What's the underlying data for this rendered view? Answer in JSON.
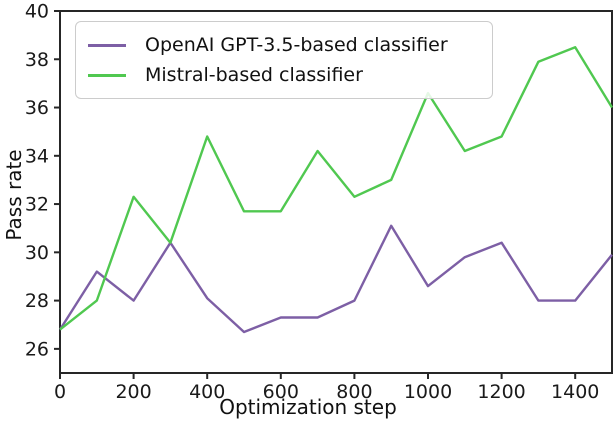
{
  "chart_data": {
    "type": "line",
    "title": "",
    "xlabel": "Optimization step",
    "ylabel": "Pass rate",
    "xlim": [
      0,
      1500
    ],
    "ylim": [
      25,
      40
    ],
    "xticks": [
      0,
      200,
      400,
      600,
      800,
      1000,
      1200,
      1400
    ],
    "yticks": [
      26,
      28,
      30,
      32,
      34,
      36,
      38,
      40
    ],
    "grid": false,
    "legend_position": "upper left",
    "axis_color": "#262626",
    "text_color": "#111111",
    "x": [
      0,
      100,
      200,
      300,
      400,
      500,
      600,
      700,
      800,
      900,
      1000,
      1100,
      1200,
      1300,
      1400,
      1500
    ],
    "series": [
      {
        "name": "OpenAI GPT-3.5-based classifier",
        "color": "#7d5fa5",
        "values": [
          26.8,
          29.2,
          28.0,
          30.4,
          28.1,
          26.7,
          27.3,
          27.3,
          28.0,
          31.1,
          28.6,
          29.8,
          30.4,
          28.0,
          28.0,
          29.9
        ]
      },
      {
        "name": "Mistral-based classifier",
        "color": "#50c850",
        "values": [
          26.8,
          28.0,
          32.3,
          30.4,
          34.8,
          31.7,
          31.7,
          34.2,
          32.3,
          33.0,
          36.6,
          34.2,
          34.8,
          37.9,
          38.5,
          36.0
        ]
      }
    ]
  }
}
